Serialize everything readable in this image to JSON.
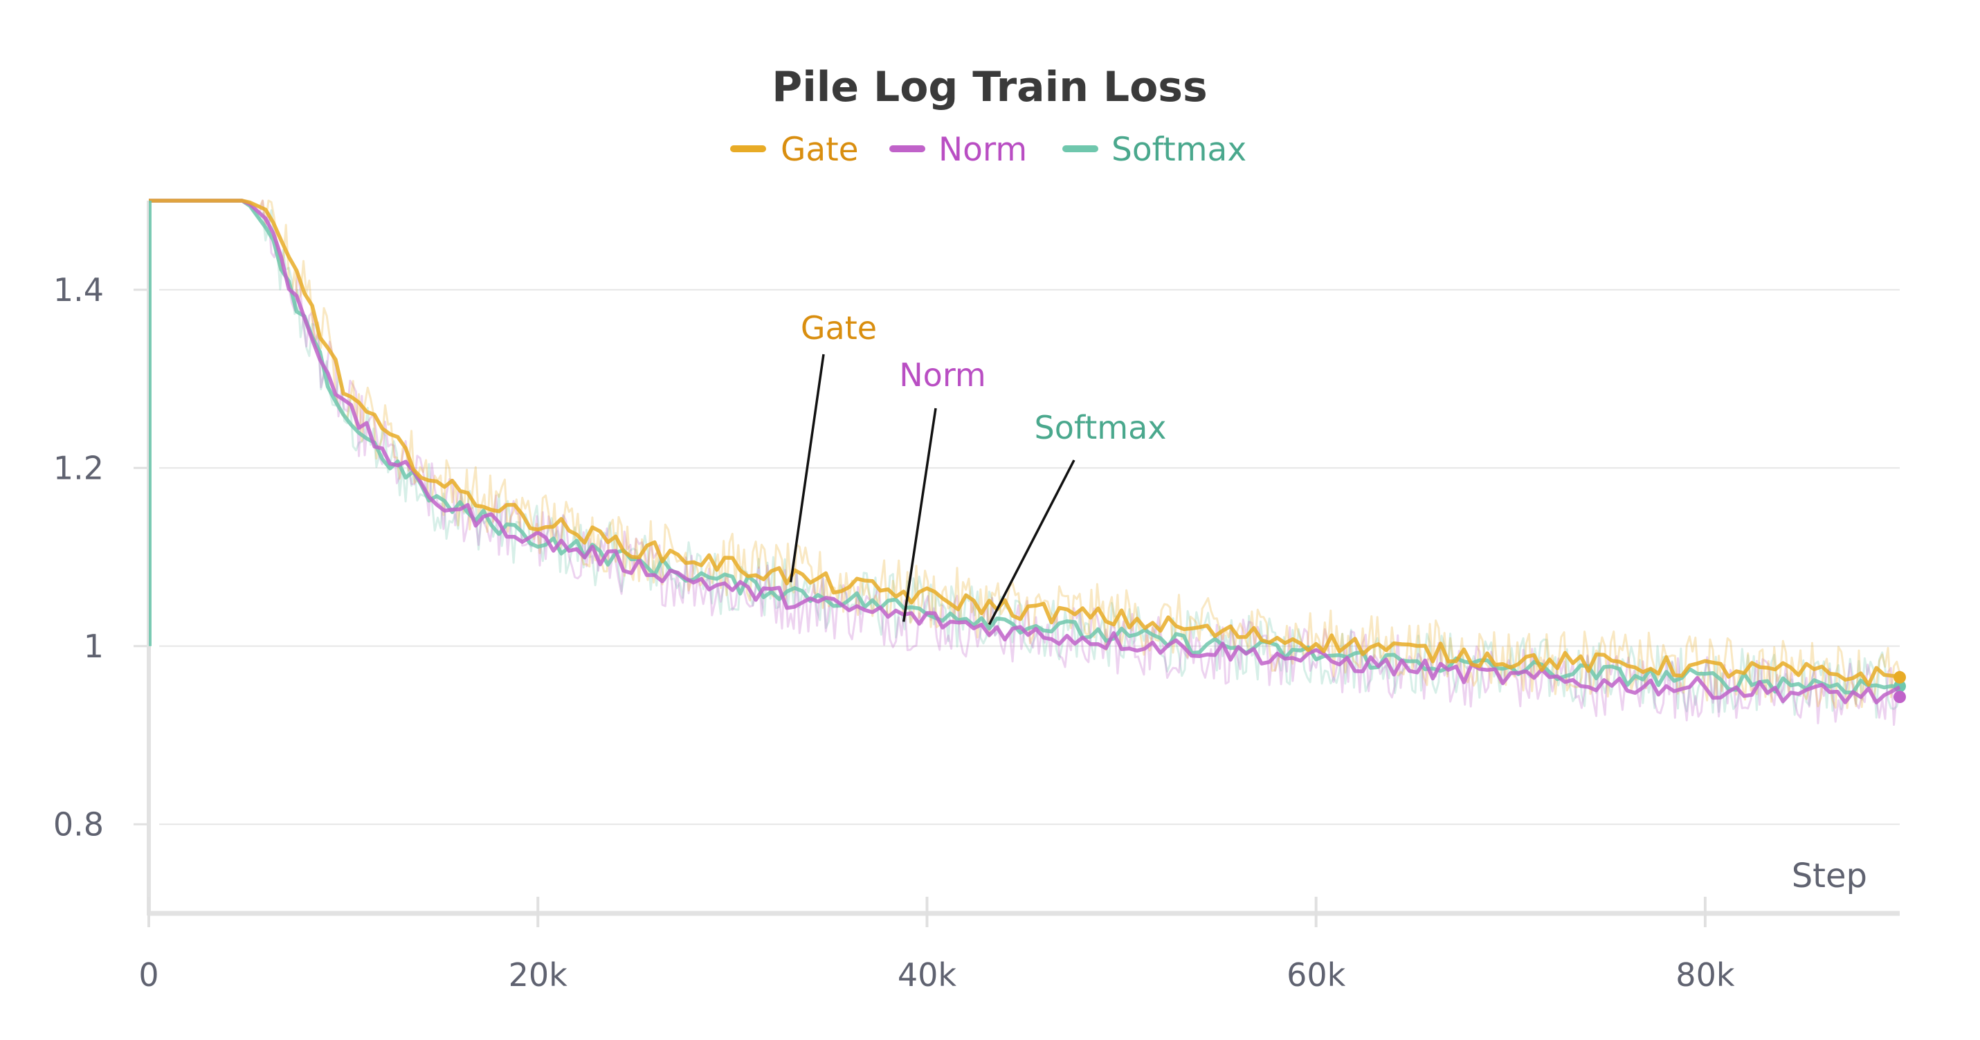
{
  "chart_data": {
    "type": "line",
    "title": "Pile Log Train Loss",
    "xlabel": "Step",
    "ylabel": "",
    "xlim": [
      0,
      90000
    ],
    "ylim": [
      0.7,
      1.5
    ],
    "x_ticks": [
      0,
      20000,
      40000,
      60000,
      80000
    ],
    "x_tick_labels": [
      "0",
      "20k",
      "40k",
      "60k",
      "80k"
    ],
    "y_ticks": [
      0.8,
      1.0,
      1.2,
      1.4
    ],
    "y_tick_labels": [
      "0.8",
      "1",
      "1.2",
      "1.4"
    ],
    "grid": true,
    "legend_position": "top-center",
    "x": [
      0,
      5000,
      6000,
      7000,
      8000,
      10000,
      12000,
      15000,
      20000,
      25000,
      30000,
      35000,
      40000,
      45000,
      50000,
      55000,
      60000,
      65000,
      70000,
      75000,
      80000,
      85000,
      90000
    ],
    "series": [
      {
        "name": "Gate",
        "color": "#e8ab26",
        "label_color": "#d98e0f",
        "values": [
          1.5,
          1.5,
          1.49,
          1.44,
          1.4,
          1.29,
          1.24,
          1.18,
          1.14,
          1.11,
          1.09,
          1.07,
          1.055,
          1.04,
          1.03,
          1.015,
          1.005,
          0.995,
          0.985,
          0.98,
          0.975,
          0.97,
          0.965
        ]
      },
      {
        "name": "Norm",
        "color": "#c062c9",
        "label_color": "#b94ec3",
        "values": [
          1.5,
          1.5,
          1.48,
          1.42,
          1.37,
          1.27,
          1.22,
          1.16,
          1.12,
          1.09,
          1.065,
          1.045,
          1.03,
          1.015,
          1.005,
          0.995,
          0.985,
          0.975,
          0.965,
          0.958,
          0.953,
          0.948,
          0.943
        ]
      },
      {
        "name": "Softmax",
        "color": "#6fc7ad",
        "label_color": "#4aa88d",
        "values": [
          1.5,
          1.5,
          1.47,
          1.41,
          1.36,
          1.26,
          1.215,
          1.16,
          1.12,
          1.095,
          1.07,
          1.055,
          1.04,
          1.025,
          1.01,
          1.0,
          0.99,
          0.982,
          0.975,
          0.968,
          0.963,
          0.958,
          0.955
        ]
      }
    ],
    "annotations": [
      {
        "text": "Gate",
        "series": "Gate",
        "x": 33000
      },
      {
        "text": "Norm",
        "series": "Norm",
        "x": 38800
      },
      {
        "text": "Softmax",
        "series": "Softmax",
        "x": 43200
      }
    ]
  }
}
